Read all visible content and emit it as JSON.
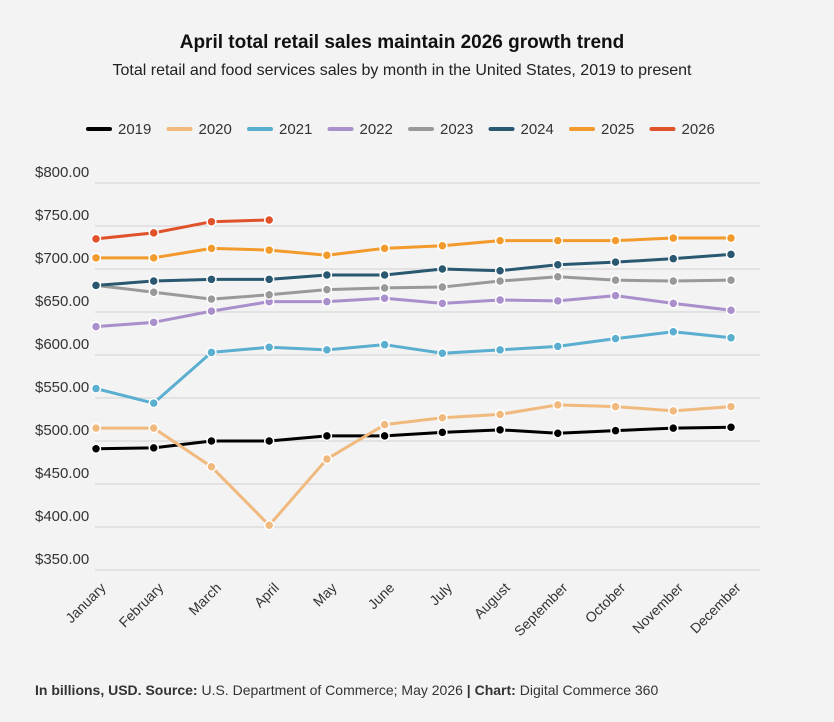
{
  "chart_data": {
    "type": "line",
    "title": "April total retail sales maintain 2026 growth trend",
    "subtitle": "Total retail and food services sales by month in the United States, 2019 to present",
    "categories": [
      "January",
      "February",
      "March",
      "April",
      "May",
      "June",
      "July",
      "August",
      "September",
      "October",
      "November",
      "December"
    ],
    "series": [
      {
        "name": "2019",
        "color": "#000000",
        "values": [
          491,
          492,
          500,
          500,
          506,
          506,
          510,
          513,
          509,
          512,
          515,
          516
        ]
      },
      {
        "name": "2020",
        "color": "#f0b97e",
        "values": [
          515,
          515,
          470,
          402,
          479,
          519,
          527,
          531,
          542,
          540,
          535,
          540
        ]
      },
      {
        "name": "2021",
        "color": "#5aaecf",
        "values": [
          561,
          544,
          603,
          609,
          606,
          612,
          602,
          606,
          610,
          619,
          627,
          620
        ]
      },
      {
        "name": "2022",
        "color": "#a98fcc",
        "values": [
          633,
          638,
          651,
          662,
          662,
          666,
          660,
          664,
          663,
          669,
          660,
          652
        ]
      },
      {
        "name": "2023",
        "color": "#999999",
        "values": [
          681,
          673,
          665,
          670,
          676,
          678,
          679,
          686,
          691,
          687,
          686,
          687
        ]
      },
      {
        "name": "2024",
        "color": "#295870",
        "values": [
          681,
          686,
          688,
          688,
          693,
          693,
          700,
          698,
          705,
          708,
          712,
          717
        ]
      },
      {
        "name": "2025",
        "color": "#f39a2c",
        "values": [
          713,
          713,
          724,
          722,
          716,
          724,
          727,
          733,
          733,
          733,
          736,
          736
        ]
      },
      {
        "name": "2026",
        "color": "#e0522a",
        "values": [
          735,
          742,
          755,
          757,
          null,
          null,
          null,
          null,
          null,
          null,
          null,
          null
        ]
      }
    ],
    "ylim": [
      350,
      800
    ],
    "yticks": [
      {
        "value": 350,
        "label": "$350.00"
      },
      {
        "value": 400,
        "label": "$400.00"
      },
      {
        "value": 450,
        "label": "$450.00"
      },
      {
        "value": 500,
        "label": "$500.00"
      },
      {
        "value": 550,
        "label": "$550.00"
      },
      {
        "value": 600,
        "label": "$600.00"
      },
      {
        "value": 650,
        "label": "$650.00"
      },
      {
        "value": 700,
        "label": "$700.00"
      },
      {
        "value": 750,
        "label": "$750.00"
      },
      {
        "value": 800,
        "label": "$800.00"
      }
    ],
    "grid": true,
    "legend": "top",
    "footer": {
      "note": "In billions, USD.",
      "source_label": "Source:",
      "source": "U.S. Department of Commerce; May 2026",
      "separator": "|",
      "chart_label": "Chart:",
      "chart_by": "Digital Commerce 360"
    }
  }
}
